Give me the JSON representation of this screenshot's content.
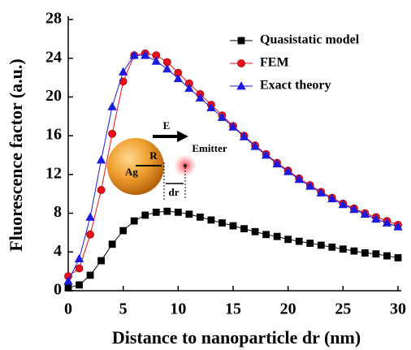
{
  "chart_data": {
    "type": "line",
    "xlabel": "Distance to nanoparticle dr (nm)",
    "ylabel": "Fluorescence factor (a.u.)",
    "x": [
      0,
      1,
      2,
      3,
      4,
      5,
      6,
      7,
      8,
      9,
      10,
      11,
      12,
      13,
      14,
      15,
      16,
      17,
      18,
      19,
      20,
      21,
      22,
      23,
      24,
      25,
      26,
      27,
      28,
      29,
      30
    ],
    "series": [
      {
        "name": "Quasistatic model",
        "color": "#000000",
        "marker": "square",
        "values": [
          0.3,
          0.6,
          1.6,
          3.1,
          4.8,
          6.2,
          7.2,
          7.8,
          8.1,
          8.2,
          8.1,
          7.9,
          7.6,
          7.3,
          7.0,
          6.7,
          6.4,
          6.1,
          5.8,
          5.6,
          5.3,
          5.1,
          4.9,
          4.7,
          4.5,
          4.3,
          4.1,
          3.9,
          3.8,
          3.6,
          3.4
        ]
      },
      {
        "name": "FEM",
        "color": "#e8101a",
        "marker": "circle",
        "values": [
          1.5,
          2.3,
          5.8,
          10.4,
          16.2,
          21.6,
          24.3,
          24.5,
          24.3,
          23.6,
          22.5,
          21.4,
          20.3,
          19.2,
          18.1,
          17.0,
          16.0,
          15.0,
          14.1,
          13.2,
          12.4,
          11.6,
          10.9,
          10.2,
          9.6,
          9.0,
          8.5,
          8.0,
          7.6,
          7.2,
          6.8
        ]
      },
      {
        "name": "Exact theory",
        "color": "#1a1ae0",
        "marker": "triangle",
        "values": [
          1.0,
          3.3,
          7.6,
          13.5,
          19.0,
          22.6,
          24.3,
          24.3,
          23.7,
          22.9,
          21.9,
          20.9,
          19.9,
          18.9,
          17.9,
          16.9,
          15.9,
          14.9,
          14.0,
          13.1,
          12.3,
          11.5,
          10.8,
          10.1,
          9.5,
          8.9,
          8.4,
          7.9,
          7.4,
          7.0,
          6.6
        ]
      }
    ],
    "xlim": [
      0,
      30
    ],
    "xticks": [
      0,
      5,
      10,
      15,
      20,
      25,
      30
    ],
    "ylim": [
      0,
      28
    ],
    "yticks": [
      0,
      4,
      8,
      12,
      16,
      20,
      24,
      28
    ],
    "annotations": [
      "E",
      "Emitter",
      "R",
      "Ag",
      "dr"
    ]
  }
}
